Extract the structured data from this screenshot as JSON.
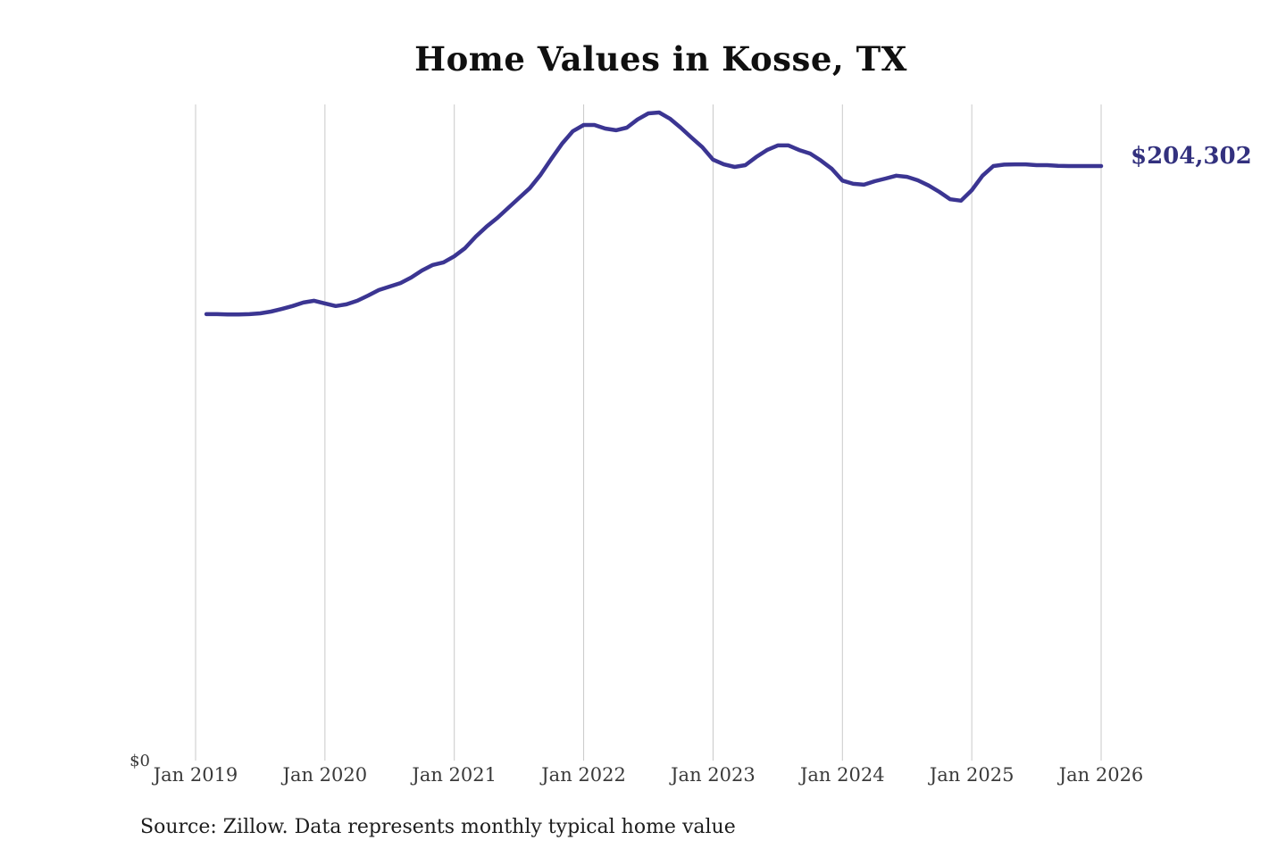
{
  "page": {
    "background": "#ffffff"
  },
  "chart": {
    "title": "Home Values in Kosse, TX",
    "end_label": "$204,302",
    "y_zero_label": "$0",
    "source": "Source: Zillow. Data represents monthly typical home value",
    "colors": {
      "line": "#3b3592",
      "end_label_text": "#33317e",
      "gridline": "#c9c9c9",
      "tick_text": "#3a3a3a",
      "title_text": "#101010",
      "source_text": "#1d1d1d",
      "background": "#ffffff"
    }
  },
  "chart_data": {
    "type": "line",
    "title": "Home Values in Kosse, TX",
    "series_name": "Monthly typical home value (USD)",
    "x_tick_labels": [
      "Jan 2019",
      "Jan 2020",
      "Jan 2021",
      "Jan 2022",
      "Jan 2023",
      "Jan 2024",
      "Jan 2025",
      "Jan 2026"
    ],
    "x_axis_range": [
      "2019-01",
      "2026-01"
    ],
    "ylim": [
      0,
      225000
    ],
    "y_axis_visible_labels": [
      "$0"
    ],
    "grid": "vertical-only",
    "legend": "none",
    "last_point_label": "$204,302",
    "x": [
      "2019-02",
      "2019-03",
      "2019-04",
      "2019-05",
      "2019-06",
      "2019-07",
      "2019-08",
      "2019-09",
      "2019-10",
      "2019-11",
      "2019-12",
      "2020-01",
      "2020-02",
      "2020-03",
      "2020-04",
      "2020-05",
      "2020-06",
      "2020-07",
      "2020-08",
      "2020-09",
      "2020-10",
      "2020-11",
      "2020-12",
      "2021-01",
      "2021-02",
      "2021-03",
      "2021-04",
      "2021-05",
      "2021-06",
      "2021-07",
      "2021-08",
      "2021-09",
      "2021-10",
      "2021-11",
      "2021-12",
      "2022-01",
      "2022-02",
      "2022-03",
      "2022-04",
      "2022-05",
      "2022-06",
      "2022-07",
      "2022-08",
      "2022-09",
      "2022-10",
      "2022-11",
      "2022-12",
      "2023-01",
      "2023-02",
      "2023-03",
      "2023-04",
      "2023-05",
      "2023-06",
      "2023-07",
      "2023-08",
      "2023-09",
      "2023-10",
      "2023-11",
      "2023-12",
      "2024-01",
      "2024-02",
      "2024-03",
      "2024-04",
      "2024-05",
      "2024-06",
      "2024-07",
      "2024-08",
      "2024-09",
      "2024-10",
      "2024-11",
      "2024-12",
      "2025-01",
      "2025-02",
      "2025-03",
      "2025-04",
      "2025-05",
      "2025-06",
      "2025-07",
      "2025-08",
      "2025-09",
      "2025-10",
      "2025-11",
      "2025-12",
      "2026-01"
    ],
    "values": [
      153400,
      153400,
      153300,
      153300,
      153400,
      153700,
      154300,
      155200,
      156200,
      157400,
      158000,
      157100,
      156200,
      156800,
      158000,
      159800,
      161700,
      162900,
      164100,
      166000,
      168400,
      170300,
      171200,
      173300,
      176100,
      180100,
      183500,
      186500,
      189900,
      193300,
      196700,
      201300,
      206800,
      212000,
      216300,
      218400,
      218400,
      217200,
      216600,
      217500,
      220300,
      222400,
      222700,
      220600,
      217500,
      214100,
      210800,
      206500,
      204900,
      204000,
      204600,
      207400,
      209800,
      211400,
      211400,
      209800,
      208600,
      206200,
      203400,
      199300,
      198200,
      197900,
      199100,
      200000,
      201000,
      200600,
      199400,
      197600,
      195400,
      192900,
      192400,
      196000,
      201000,
      204300,
      204800,
      204900,
      204900,
      204600,
      204600,
      204400,
      204300,
      204300,
      204300,
      204302
    ]
  }
}
